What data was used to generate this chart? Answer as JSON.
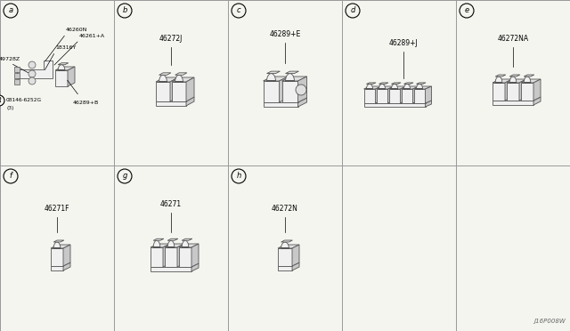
{
  "bg_color": "#f5f5f0",
  "grid_color": "#999999",
  "watermark": "J16P008W",
  "panels": [
    {
      "id": "a",
      "col": 0,
      "row": 0,
      "label": null
    },
    {
      "id": "b",
      "col": 1,
      "row": 0,
      "label": "46272J"
    },
    {
      "id": "c",
      "col": 2,
      "row": 0,
      "label": "46289+E"
    },
    {
      "id": "d",
      "col": 3,
      "row": 0,
      "label": "46289+J"
    },
    {
      "id": "e",
      "col": 4,
      "row": 0,
      "label": "46272NA"
    },
    {
      "id": "f",
      "col": 0,
      "row": 1,
      "label": "46271F"
    },
    {
      "id": "g",
      "col": 1,
      "row": 1,
      "label": "46271"
    },
    {
      "id": "h",
      "col": 2,
      "row": 1,
      "label": "46272N"
    }
  ],
  "num_cols": 5,
  "num_rows": 2,
  "line_color": "#000000",
  "text_color": "#000000",
  "clamp_face": "#f0f0f0",
  "clamp_top": "#e0e0e0",
  "clamp_side": "#c8c8c8",
  "clamp_edge": "#555555"
}
